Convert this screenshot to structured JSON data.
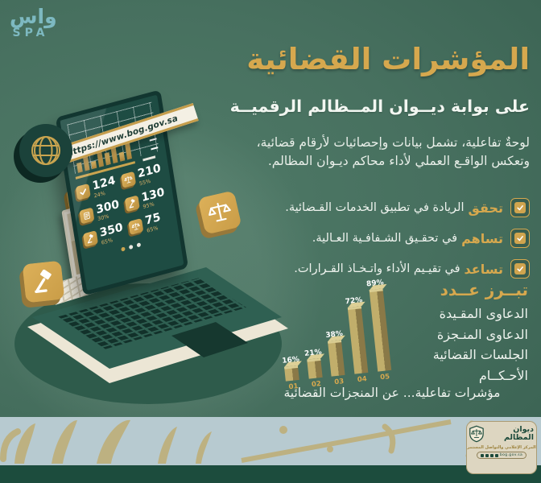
{
  "spa_logo": {
    "line1": "واس",
    "line2": "SPA",
    "color": "#7db9c1"
  },
  "header": {
    "title": "المؤشرات القضائية",
    "subtitle": "على بوابة ديــوان المــظالم الرقميــة",
    "title_color": "#d6a84e"
  },
  "intro": {
    "line1": "لوحةٌ تفاعلية، تشمل بيانات وإحصائيات لأرقام قضائية،",
    "line2": "وتعكس الواقـع العملي لأداء محاكم ديـوان المظالم."
  },
  "bullets": [
    {
      "keyword": "تحقق",
      "text": "الريادة في تطبيق الخدمات القـضائية."
    },
    {
      "keyword": "تساهم",
      "text": "في تحقـيق الشـفافـية العـالية."
    },
    {
      "keyword": "تساعد",
      "text": "في تقيـيم الأداء واتـخـاذ القـرارات."
    }
  ],
  "highlight": {
    "title": "تبــرز عــدد",
    "items": [
      "الدعاوى المقـيدة",
      "الدعاوى المنـجزة",
      "الجلسات القضائية",
      "الأحـكــام"
    ]
  },
  "chart_data": {
    "type": "bar",
    "categories": [
      "01",
      "02",
      "03",
      "04",
      "05"
    ],
    "values": [
      16,
      21,
      38,
      72,
      89
    ],
    "display_values": [
      "16%",
      "21%",
      "38%",
      "72%",
      "89%"
    ],
    "title": "",
    "xlabel": "",
    "ylabel": "",
    "ylim": [
      0,
      100
    ],
    "grid": false,
    "legend": "none",
    "bar_color": "#b3a060",
    "category_label_color": "#d6a84e",
    "value_label_color": "#ffffff"
  },
  "laptop": {
    "url": "https://www.bog.gov.sa",
    "mini_chart_bars": [
      12,
      22,
      9,
      28,
      15,
      24,
      11,
      27
    ],
    "stats": [
      {
        "value": "124",
        "pct": "24%",
        "icon": "check"
      },
      {
        "value": "300",
        "pct": "30%",
        "icon": "document"
      },
      {
        "value": "350",
        "pct": "65%",
        "icon": "gavel"
      },
      {
        "value": "210",
        "pct": "55%",
        "icon": "scales"
      },
      {
        "value": "130",
        "pct": "95%",
        "icon": "gavel"
      },
      {
        "value": "75",
        "pct": "65%",
        "icon": "scales"
      }
    ],
    "carousel_dots": 3
  },
  "footer_note": "مؤشرات تفاعلية... عن المنجزات القضائية",
  "footer_logo": {
    "org_name": "ديوان المظالم",
    "tagline": "المركز الإعلامي والتواصل المستمر",
    "handle": "bog.gov.sa"
  },
  "colors": {
    "background": "#47705f",
    "gold": "#d6a84e",
    "band_light": "#b7cad0",
    "band_calligraphy": "#bdb181",
    "bottom_strip": "#1c4c3d"
  }
}
